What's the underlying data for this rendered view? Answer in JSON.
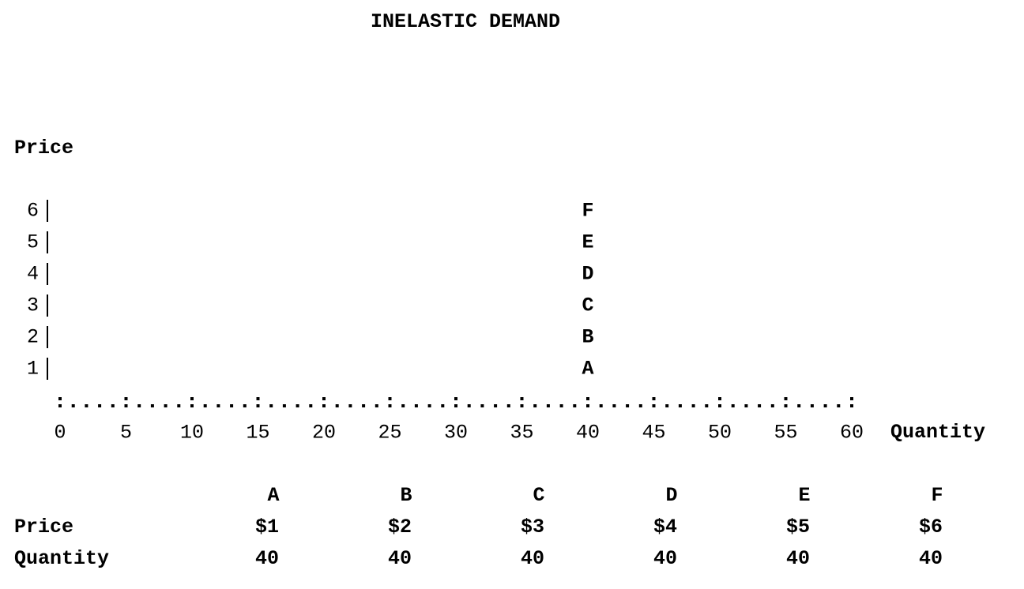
{
  "chart_data": {
    "type": "scatter",
    "title": "INELASTIC DEMAND",
    "xlabel": "Quantity",
    "ylabel": "Price",
    "xlim": [
      0,
      60
    ],
    "ylim": [
      0,
      6
    ],
    "x_ticks": [
      "0",
      "5",
      "10",
      "15",
      "20",
      "25",
      "30",
      "35",
      "40",
      "45",
      "50",
      "55",
      "60"
    ],
    "y_ticks": [
      "1",
      "2",
      "3",
      "4",
      "5",
      "6"
    ],
    "points": [
      {
        "label": "A",
        "x": 40,
        "y": 1
      },
      {
        "label": "B",
        "x": 40,
        "y": 2
      },
      {
        "label": "C",
        "x": 40,
        "y": 3
      },
      {
        "label": "D",
        "x": 40,
        "y": 4
      },
      {
        "label": "E",
        "x": 40,
        "y": 5
      },
      {
        "label": "F",
        "x": 40,
        "y": 6
      }
    ],
    "table": {
      "row_labels": [
        "Price",
        "Quantity"
      ],
      "columns": [
        {
          "header": "A",
          "price": "$1",
          "quantity": "40"
        },
        {
          "header": "B",
          "price": "$2",
          "quantity": "40"
        },
        {
          "header": "C",
          "price": "$3",
          "quantity": "40"
        },
        {
          "header": "D",
          "price": "$4",
          "quantity": "40"
        },
        {
          "header": "E",
          "price": "$5",
          "quantity": "40"
        },
        {
          "header": "F",
          "price": "$6",
          "quantity": "40"
        }
      ]
    }
  }
}
